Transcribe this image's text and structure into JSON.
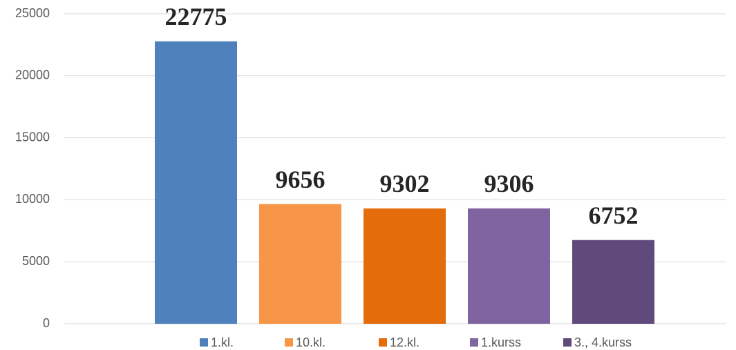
{
  "chart_data": {
    "type": "bar",
    "categories": [
      null
    ],
    "series": [
      {
        "name": "1.kl.",
        "color": "#4f81bd",
        "values": [
          22775
        ]
      },
      {
        "name": "10.kl.",
        "color": "#f79646",
        "values": [
          9656
        ]
      },
      {
        "name": "12.kl.",
        "color": "#e46c0a",
        "values": [
          9302
        ]
      },
      {
        "name": "1.kurss",
        "color": "#8064a2",
        "values": [
          9306
        ]
      },
      {
        "name": "3., 4.kurss",
        "color": "#604a7b",
        "values": [
          6752
        ]
      }
    ],
    "ylim": [
      0,
      25000
    ],
    "yticks": [
      0,
      5000,
      10000,
      15000,
      20000,
      25000
    ],
    "grid": true,
    "legend": "bottom"
  }
}
